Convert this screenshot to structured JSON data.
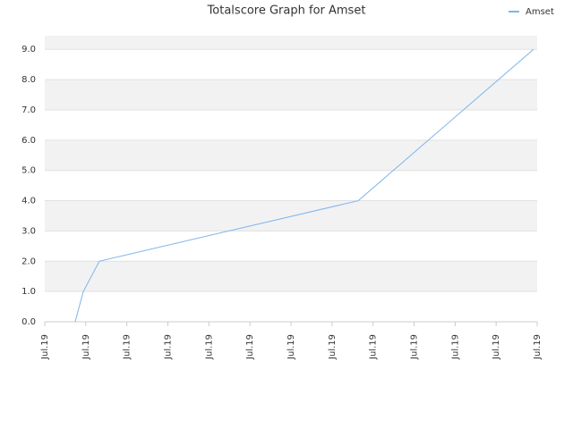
{
  "chart_data": {
    "type": "line",
    "title": "Totalscore Graph for Amset",
    "xlim": [
      0,
      12
    ],
    "xticks": [
      {
        "value": 0,
        "label": "Jul.19"
      },
      {
        "value": 1,
        "label": "Jul.19"
      },
      {
        "value": 2,
        "label": "Jul.19"
      },
      {
        "value": 3,
        "label": "Jul.19"
      },
      {
        "value": 4,
        "label": "Jul.19"
      },
      {
        "value": 5,
        "label": "Jul.19"
      },
      {
        "value": 6,
        "label": "Jul.19"
      },
      {
        "value": 7,
        "label": "Jul.19"
      },
      {
        "value": 8,
        "label": "Jul.19"
      },
      {
        "value": 9,
        "label": "Jul.19"
      },
      {
        "value": 10,
        "label": "Jul.19"
      },
      {
        "value": 11,
        "label": "Jul.19"
      },
      {
        "value": 12,
        "label": "Jul.19"
      }
    ],
    "ylim": [
      0,
      9.45
    ],
    "yticks": [
      {
        "value": 0,
        "label": "0.0"
      },
      {
        "value": 1,
        "label": "1.0"
      },
      {
        "value": 2,
        "label": "2.0"
      },
      {
        "value": 3,
        "label": "3.0"
      },
      {
        "value": 4,
        "label": "4.0"
      },
      {
        "value": 5,
        "label": "5.0"
      },
      {
        "value": 6,
        "label": "6.0"
      },
      {
        "value": 7,
        "label": "7.0"
      },
      {
        "value": 8,
        "label": "8.0"
      },
      {
        "value": 9,
        "label": "9.0"
      }
    ],
    "grid": true,
    "legend": "top-right",
    "series": [
      {
        "name": "Amset",
        "color": "#7cb5ec",
        "x": [
          0.74,
          0.94,
          1.33,
          7.64,
          11.91
        ],
        "values": [
          0,
          1,
          2,
          4,
          9
        ]
      }
    ]
  }
}
